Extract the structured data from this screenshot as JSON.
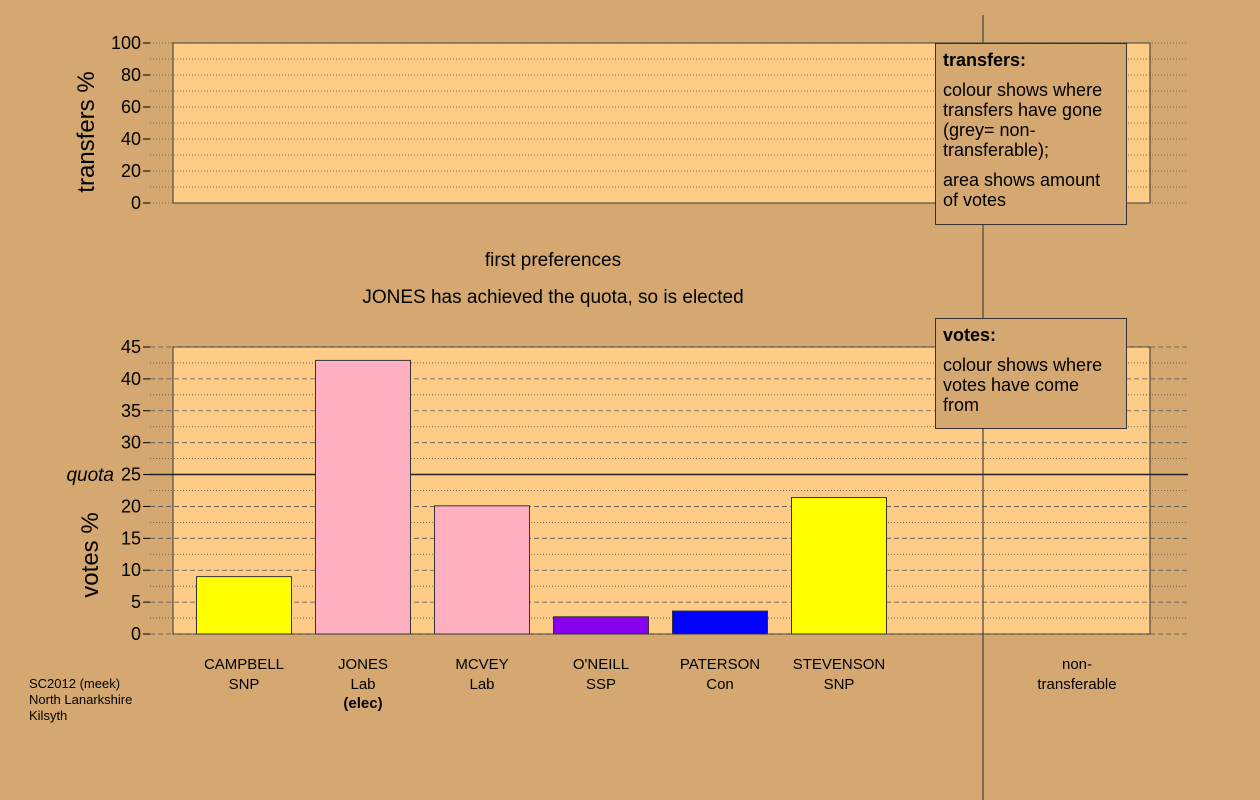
{
  "transfers_panel": {
    "ylabel": "transfers %",
    "ticks": [
      "0",
      "20",
      "40",
      "60",
      "80",
      "100"
    ],
    "legend": {
      "title": "transfers:",
      "text1": "colour shows where transfers have gone (grey= non-transferable);",
      "text2": "area shows amount of votes"
    }
  },
  "headings": {
    "stage": "first preferences",
    "status": "JONES has achieved the quota, so is elected"
  },
  "votes_panel": {
    "ylabel": "votes %",
    "ticks": [
      "0",
      "5",
      "10",
      "15",
      "20",
      "25",
      "30",
      "35",
      "40",
      "45"
    ],
    "quota_label": "quota",
    "legend": {
      "title": "votes:",
      "text1": "colour shows where votes have come from"
    }
  },
  "candidates": [
    {
      "name": "CAMPBELL",
      "party": "SNP",
      "note": ""
    },
    {
      "name": "JONES",
      "party": "Lab",
      "note": "(elec)"
    },
    {
      "name": "MCVEY",
      "party": "Lab",
      "note": ""
    },
    {
      "name": "O'NEILL",
      "party": "SSP",
      "note": ""
    },
    {
      "name": "PATERSON",
      "party": "Con",
      "note": ""
    },
    {
      "name": "STEVENSON",
      "party": "SNP",
      "note": ""
    }
  ],
  "non_transferable": {
    "line1": "non-",
    "line2": "transferable"
  },
  "source": {
    "line1": "SC2012 (meek)",
    "line2": "North Lanarkshire",
    "line3": "Kilsyth"
  },
  "colors": {
    "background": "#d4a870",
    "plot_area": "#ffcc88",
    "SNP": "#ffff00",
    "Lab": "#ffb0c0",
    "SSP": "#8800ee",
    "Con": "#0000ff"
  },
  "chart_data": [
    {
      "type": "bar",
      "title": "",
      "ylabel": "transfers %",
      "ylim": [
        0,
        100
      ],
      "categories": [],
      "values": []
    },
    {
      "type": "bar",
      "title": "first preferences",
      "ylabel": "votes %",
      "ylim": [
        0,
        45
      ],
      "quota": 25,
      "categories": [
        "CAMPBELL SNP",
        "JONES Lab",
        "MCVEY Lab",
        "O'NEILL SSP",
        "PATERSON Con",
        "STEVENSON SNP",
        "non-transferable"
      ],
      "values": [
        9.0,
        42.9,
        20.1,
        2.7,
        3.6,
        21.4,
        0
      ],
      "bar_parties": [
        "SNP",
        "Lab",
        "Lab",
        "SSP",
        "Con",
        "SNP",
        ""
      ]
    }
  ]
}
